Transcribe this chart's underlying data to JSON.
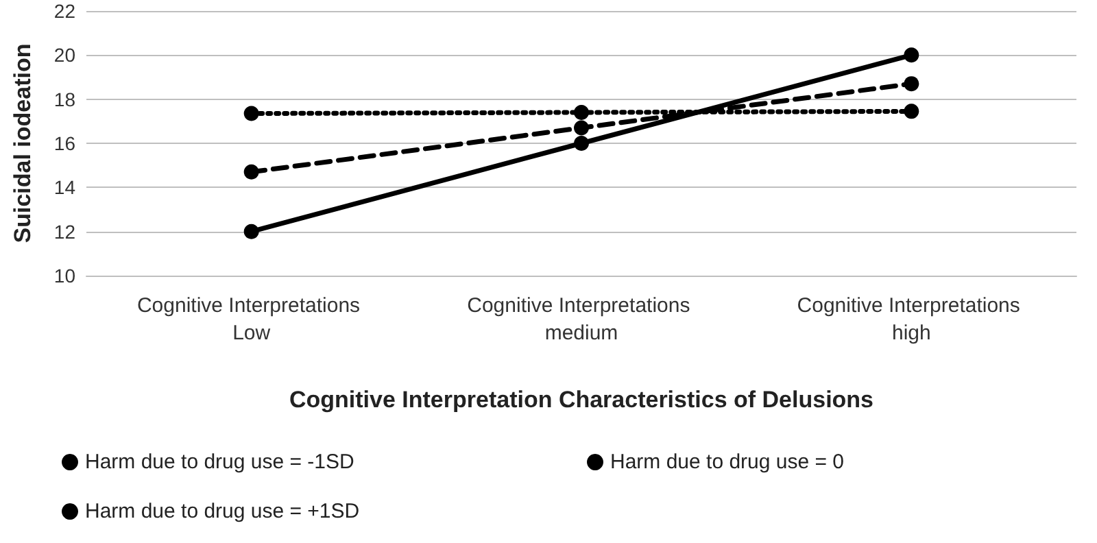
{
  "chart_data": {
    "type": "line",
    "xlabel": "Cognitive Interpretation Characteristics of Delusions",
    "ylabel": "Suicidal iodeation",
    "categories": [
      "Cognitive Interpretations Low",
      "Cognitive Interpretations medium",
      "Cognitive Interpretations high"
    ],
    "series": [
      {
        "name": "Harm due to drug use = -1SD",
        "color": "#000000",
        "line_style": "dotted",
        "values": [
          17.35,
          17.4,
          17.45
        ]
      },
      {
        "name": "Harm due to drug use = 0",
        "color": "#000000",
        "line_style": "dashed",
        "values": [
          14.7,
          16.7,
          18.7
        ]
      },
      {
        "name": "Harm due to drug use = +1SD",
        "color": "#000000",
        "line_style": "solid",
        "values": [
          12,
          16,
          20
        ]
      }
    ],
    "ylim": [
      10,
      22
    ],
    "yticks": [
      10,
      12,
      14,
      16,
      18,
      20,
      22
    ],
    "grid": "y",
    "legend": "bottom",
    "marker": "circle"
  }
}
